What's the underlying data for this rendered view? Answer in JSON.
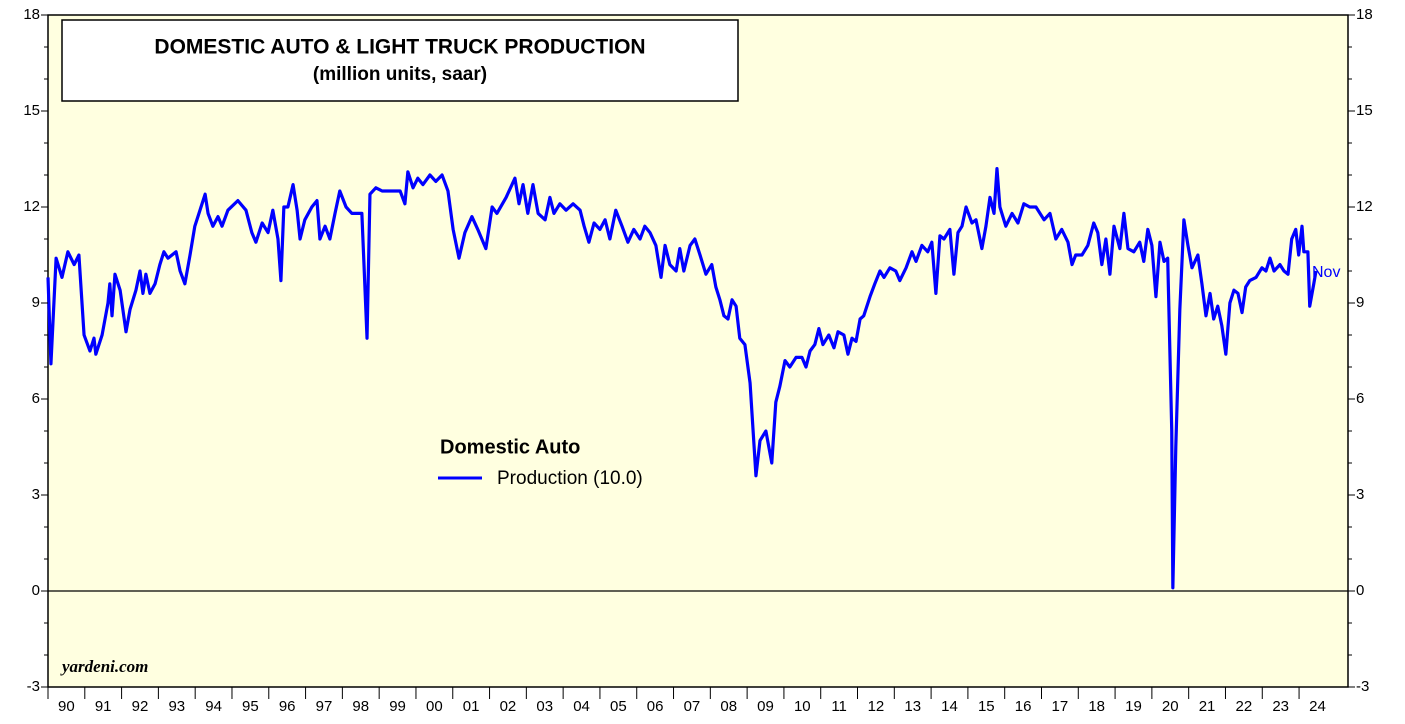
{
  "chart_data": {
    "type": "line",
    "title": "DOMESTIC AUTO & LIGHT TRUCK PRODUCTION",
    "subtitle": "(million units, saar)",
    "legend_title": "Domestic Auto",
    "annotation": "Nov",
    "source": "yardeni.com",
    "grid": false,
    "xlim": [
      1990,
      2025.33
    ],
    "ylim": [
      -3,
      18
    ],
    "yticks": [
      -3,
      0,
      3,
      6,
      9,
      12,
      15,
      18
    ],
    "xticks": [
      {
        "value": 1990.5,
        "label": "90"
      },
      {
        "value": 1991.5,
        "label": "91"
      },
      {
        "value": 1992.5,
        "label": "92"
      },
      {
        "value": 1993.5,
        "label": "93"
      },
      {
        "value": 1994.5,
        "label": "94"
      },
      {
        "value": 1995.5,
        "label": "95"
      },
      {
        "value": 1996.5,
        "label": "96"
      },
      {
        "value": 1997.5,
        "label": "97"
      },
      {
        "value": 1998.5,
        "label": "98"
      },
      {
        "value": 1999.5,
        "label": "99"
      },
      {
        "value": 2000.5,
        "label": "00"
      },
      {
        "value": 2001.5,
        "label": "01"
      },
      {
        "value": 2002.5,
        "label": "02"
      },
      {
        "value": 2003.5,
        "label": "03"
      },
      {
        "value": 2004.5,
        "label": "04"
      },
      {
        "value": 2005.5,
        "label": "05"
      },
      {
        "value": 2006.5,
        "label": "06"
      },
      {
        "value": 2007.5,
        "label": "07"
      },
      {
        "value": 2008.5,
        "label": "08"
      },
      {
        "value": 2009.5,
        "label": "09"
      },
      {
        "value": 2010.5,
        "label": "10"
      },
      {
        "value": 2011.5,
        "label": "11"
      },
      {
        "value": 2012.5,
        "label": "12"
      },
      {
        "value": 2013.5,
        "label": "13"
      },
      {
        "value": 2014.5,
        "label": "14"
      },
      {
        "value": 2015.5,
        "label": "15"
      },
      {
        "value": 2016.5,
        "label": "16"
      },
      {
        "value": 2017.5,
        "label": "17"
      },
      {
        "value": 2018.5,
        "label": "18"
      },
      {
        "value": 2019.5,
        "label": "19"
      },
      {
        "value": 2020.5,
        "label": "20"
      },
      {
        "value": 2021.5,
        "label": "21"
      },
      {
        "value": 2022.5,
        "label": "22"
      },
      {
        "value": 2023.5,
        "label": "23"
      },
      {
        "value": 2024.5,
        "label": "24"
      }
    ],
    "x": [
      1990.0,
      1990.08,
      1990.22,
      1990.38,
      1990.54,
      1990.71,
      1990.84,
      1990.98,
      1991.14,
      1991.25,
      1991.3,
      1991.47,
      1991.63,
      1991.68,
      1991.74,
      1991.82,
      1991.96,
      1992.12,
      1992.23,
      1992.39,
      1992.5,
      1992.58,
      1992.66,
      1992.77,
      1992.91,
      1993.04,
      1993.15,
      1993.26,
      1993.48,
      1993.59,
      1993.72,
      1993.86,
      1993.99,
      1994.13,
      1994.27,
      1994.35,
      1994.48,
      1994.62,
      1994.73,
      1994.89,
      1995.16,
      1995.38,
      1995.54,
      1995.65,
      1995.82,
      1995.98,
      1996.11,
      1996.25,
      1996.33,
      1996.41,
      1996.52,
      1996.66,
      1996.77,
      1996.85,
      1996.98,
      1997.17,
      1997.31,
      1997.39,
      1997.53,
      1997.66,
      1997.8,
      1997.93,
      1998.1,
      1998.26,
      1998.53,
      1998.67,
      1998.75,
      1998.91,
      1999.08,
      1999.29,
      1999.57,
      1999.7,
      1999.78,
      1999.92,
      2000.05,
      2000.19,
      2000.38,
      2000.54,
      2000.71,
      2000.87,
      2001.01,
      2001.17,
      2001.33,
      2001.52,
      2001.68,
      2001.9,
      2002.07,
      2002.2,
      2002.45,
      2002.69,
      2002.8,
      2002.91,
      2003.04,
      2003.18,
      2003.32,
      2003.51,
      2003.64,
      2003.75,
      2003.91,
      2004.08,
      2004.27,
      2004.46,
      2004.57,
      2004.7,
      2004.84,
      2005.0,
      2005.14,
      2005.27,
      2005.43,
      2005.6,
      2005.76,
      2005.92,
      2006.09,
      2006.22,
      2006.36,
      2006.52,
      2006.66,
      2006.77,
      2006.9,
      2007.07,
      2007.17,
      2007.28,
      2007.45,
      2007.58,
      2007.72,
      2007.88,
      2008.04,
      2008.15,
      2008.26,
      2008.37,
      2008.48,
      2008.59,
      2008.7,
      2008.8,
      2008.94,
      2009.08,
      2009.24,
      2009.35,
      2009.51,
      2009.67,
      2009.78,
      2009.89,
      2010.03,
      2010.16,
      2010.33,
      2010.49,
      2010.6,
      2010.71,
      2010.84,
      2010.95,
      2011.06,
      2011.22,
      2011.36,
      2011.47,
      2011.63,
      2011.74,
      2011.85,
      2011.96,
      2012.07,
      2012.17,
      2012.34,
      2012.47,
      2012.61,
      2012.72,
      2012.88,
      2013.04,
      2013.15,
      2013.32,
      2013.48,
      2013.59,
      2013.75,
      2013.91,
      2014.02,
      2014.13,
      2014.24,
      2014.35,
      2014.51,
      2014.62,
      2014.73,
      2014.84,
      2014.95,
      2015.11,
      2015.22,
      2015.38,
      2015.49,
      2015.6,
      2015.71,
      2015.79,
      2015.87,
      2016.03,
      2016.2,
      2016.36,
      2016.52,
      2016.68,
      2016.85,
      2017.07,
      2017.23,
      2017.39,
      2017.55,
      2017.72,
      2017.83,
      2017.93,
      2018.1,
      2018.26,
      2018.42,
      2018.53,
      2018.64,
      2018.75,
      2018.86,
      2018.97,
      2019.13,
      2019.24,
      2019.35,
      2019.51,
      2019.67,
      2019.78,
      2019.89,
      2020.0,
      2020.11,
      2020.22,
      2020.33,
      2020.43,
      2020.54,
      2020.57,
      2020.65,
      2020.76,
      2020.87,
      2020.98,
      2021.09,
      2021.25,
      2021.36,
      2021.47,
      2021.58,
      2021.68,
      2021.79,
      2021.9,
      2022.01,
      2022.12,
      2022.23,
      2022.34,
      2022.45,
      2022.55,
      2022.66,
      2022.83,
      2022.99,
      2023.1,
      2023.21,
      2023.32,
      2023.48,
      2023.59,
      2023.7,
      2023.8,
      2023.91,
      2023.99,
      2024.08,
      2024.13,
      2024.24,
      2024.29,
      2024.4,
      2024.46
    ],
    "series": [
      {
        "name": "Production (10.0)",
        "color": "#0000ff",
        "values": [
          9.8,
          7.1,
          10.4,
          9.8,
          10.6,
          10.2,
          10.5,
          8.0,
          7.5,
          7.9,
          7.4,
          8.0,
          9.0,
          9.6,
          8.6,
          9.9,
          9.4,
          8.1,
          8.8,
          9.4,
          10.0,
          9.3,
          9.9,
          9.3,
          9.6,
          10.2,
          10.6,
          10.4,
          10.6,
          10.0,
          9.6,
          10.5,
          11.4,
          11.9,
          12.4,
          11.8,
          11.4,
          11.7,
          11.4,
          11.9,
          12.2,
          11.9,
          11.2,
          10.9,
          11.5,
          11.2,
          11.9,
          11.0,
          9.7,
          12.0,
          12.0,
          12.7,
          11.9,
          11.0,
          11.6,
          12.0,
          12.2,
          11.0,
          11.4,
          11.0,
          11.8,
          12.5,
          12.0,
          11.8,
          11.8,
          7.9,
          12.4,
          12.6,
          12.5,
          12.5,
          12.5,
          12.1,
          13.1,
          12.6,
          12.9,
          12.7,
          13.0,
          12.8,
          13.0,
          12.5,
          11.3,
          10.4,
          11.2,
          11.7,
          11.3,
          10.7,
          12.0,
          11.8,
          12.3,
          12.9,
          12.1,
          12.7,
          11.8,
          12.7,
          11.8,
          11.6,
          12.3,
          11.8,
          12.1,
          11.9,
          12.1,
          11.9,
          11.4,
          10.9,
          11.5,
          11.3,
          11.6,
          11.0,
          11.9,
          11.4,
          10.9,
          11.3,
          11.0,
          11.4,
          11.2,
          10.8,
          9.8,
          10.8,
          10.2,
          10.0,
          10.7,
          10.0,
          10.8,
          11.0,
          10.5,
          9.9,
          10.2,
          9.5,
          9.1,
          8.6,
          8.5,
          9.1,
          8.9,
          7.9,
          7.7,
          6.5,
          3.6,
          4.7,
          5.0,
          4.0,
          5.9,
          6.4,
          7.2,
          7.0,
          7.3,
          7.3,
          7.0,
          7.5,
          7.7,
          8.2,
          7.7,
          8.0,
          7.6,
          8.1,
          8.0,
          7.4,
          7.9,
          7.8,
          8.5,
          8.6,
          9.2,
          9.6,
          10.0,
          9.8,
          10.1,
          10.0,
          9.7,
          10.1,
          10.6,
          10.3,
          10.8,
          10.6,
          10.9,
          9.3,
          11.1,
          11.0,
          11.3,
          9.9,
          11.2,
          11.4,
          12.0,
          11.5,
          11.6,
          10.7,
          11.4,
          12.3,
          11.8,
          13.2,
          12.0,
          11.4,
          11.8,
          11.5,
          12.1,
          12.0,
          12.0,
          11.6,
          11.8,
          11.0,
          11.3,
          10.9,
          10.2,
          10.5,
          10.5,
          10.8,
          11.5,
          11.2,
          10.2,
          11.0,
          9.9,
          11.4,
          10.7,
          11.8,
          10.7,
          10.6,
          10.9,
          10.3,
          11.3,
          10.8,
          9.2,
          10.9,
          10.3,
          10.4,
          5.0,
          0.1,
          4.5,
          8.8,
          11.6,
          10.8,
          10.1,
          10.5,
          9.6,
          8.6,
          9.3,
          8.5,
          8.9,
          8.3,
          7.4,
          9.0,
          9.4,
          9.3,
          8.7,
          9.5,
          9.7,
          9.8,
          10.1,
          10.0,
          10.4,
          10.0,
          10.2,
          10.0,
          9.9,
          11.0,
          11.3,
          10.5,
          11.4,
          10.6,
          10.6,
          8.9,
          9.6,
          10.0
        ]
      }
    ]
  }
}
